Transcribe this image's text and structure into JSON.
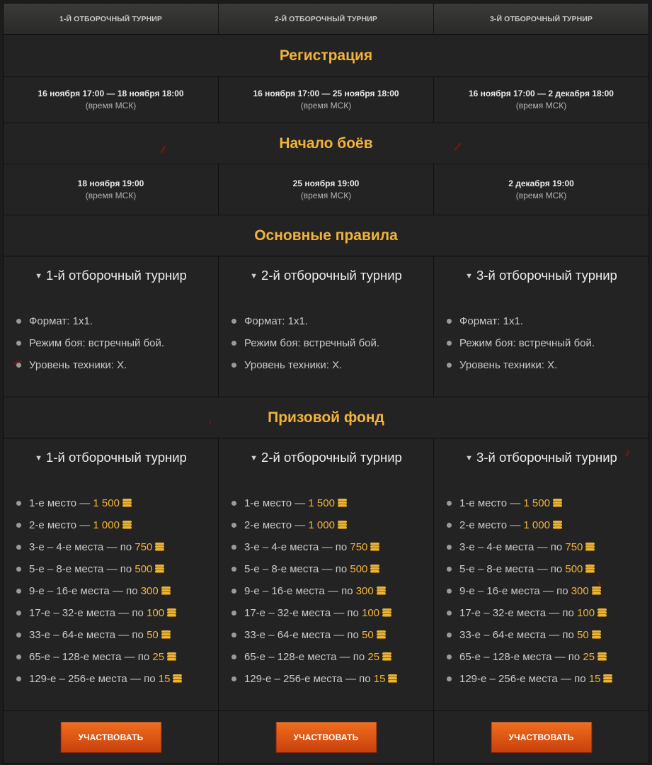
{
  "tabs": [
    "1-Й ОТБОРОЧНЫЙ ТУРНИР",
    "2-Й ОТБОРОЧНЫЙ ТУРНИР",
    "3-Й ОТБОРОЧНЫЙ ТУРНИР"
  ],
  "registration": {
    "title": "Регистрация",
    "cells": [
      {
        "main": "16 ноября 17:00 — 18 ноября 18:00",
        "sub": "(время МСК)"
      },
      {
        "main": "16 ноября 17:00 — 25 ноября 18:00",
        "sub": "(время МСК)"
      },
      {
        "main": "16 ноября 17:00 — 2 декабря 18:00",
        "sub": "(время МСК)"
      }
    ]
  },
  "battles": {
    "title": "Начало боёв",
    "cells": [
      {
        "main": "18 ноября 19:00",
        "sub": "(время МСК)"
      },
      {
        "main": "25 ноября 19:00",
        "sub": "(время МСК)"
      },
      {
        "main": "2 декабря 19:00",
        "sub": "(время МСК)"
      }
    ]
  },
  "rules": {
    "title": "Основные правила",
    "columns": [
      {
        "heading": "1-й отборочный турнир",
        "items": [
          "Формат: 1х1.",
          "Режим боя: встречный бой.",
          "Уровень техники: X."
        ]
      },
      {
        "heading": "2-й отборочный турнир",
        "items": [
          "Формат: 1х1.",
          "Режим боя: встречный бой.",
          "Уровень техники: X."
        ]
      },
      {
        "heading": "3-й отборочный турнир",
        "items": [
          "Формат: 1х1.",
          "Режим боя: встречный бой.",
          "Уровень техники: X."
        ]
      }
    ]
  },
  "prizes": {
    "title": "Призовой фонд",
    "coin_icon": "gold-coins-icon",
    "columns": [
      {
        "heading": "1-й отборочный турнир",
        "items": [
          {
            "label": "1-е место — ",
            "amount": "1 500"
          },
          {
            "label": "2-е место — ",
            "amount": "1 000"
          },
          {
            "label": "3-е – 4-е места — по ",
            "amount": "750"
          },
          {
            "label": "5-е – 8-е места — по ",
            "amount": "500"
          },
          {
            "label": "9-е – 16-е места — по ",
            "amount": "300"
          },
          {
            "label": "17-е – 32-е места — по ",
            "amount": "100"
          },
          {
            "label": "33-е – 64-е места — по ",
            "amount": "50"
          },
          {
            "label": "65-е – 128-е места — по ",
            "amount": "25"
          },
          {
            "label": "129-е – 256-е места — по ",
            "amount": "15"
          }
        ]
      },
      {
        "heading": "2-й отборочный турнир",
        "items": [
          {
            "label": "1-е место — ",
            "amount": "1 500"
          },
          {
            "label": "2-е место — ",
            "amount": "1 000"
          },
          {
            "label": "3-е – 4-е места — по ",
            "amount": "750"
          },
          {
            "label": "5-е – 8-е места — по ",
            "amount": "500"
          },
          {
            "label": "9-е – 16-е места — по ",
            "amount": "300"
          },
          {
            "label": "17-е – 32-е места — по ",
            "amount": "100"
          },
          {
            "label": "33-е – 64-е места — по ",
            "amount": "50"
          },
          {
            "label": "65-е – 128-е места — по ",
            "amount": "25"
          },
          {
            "label": "129-е – 256-е места — по ",
            "amount": "15"
          }
        ]
      },
      {
        "heading": "3-й отборочный турнир",
        "items": [
          {
            "label": "1-е место — ",
            "amount": "1 500"
          },
          {
            "label": "2-е место — ",
            "amount": "1 000"
          },
          {
            "label": "3-е – 4-е места — по ",
            "amount": "750"
          },
          {
            "label": "5-е – 8-е места — по ",
            "amount": "500"
          },
          {
            "label": "9-е – 16-е места — по ",
            "amount": "300"
          },
          {
            "label": "17-е – 32-е места — по ",
            "amount": "100"
          },
          {
            "label": "33-е – 64-е места — по ",
            "amount": "50"
          },
          {
            "label": "65-е – 128-е места — по ",
            "amount": "25"
          },
          {
            "label": "129-е – 256-е места — по ",
            "amount": "15"
          }
        ]
      }
    ]
  },
  "participate_label": "УЧАСТВОВАТЬ",
  "colors": {
    "accent": "#f2b33a",
    "button": "#e05a16",
    "background": "#232323"
  }
}
